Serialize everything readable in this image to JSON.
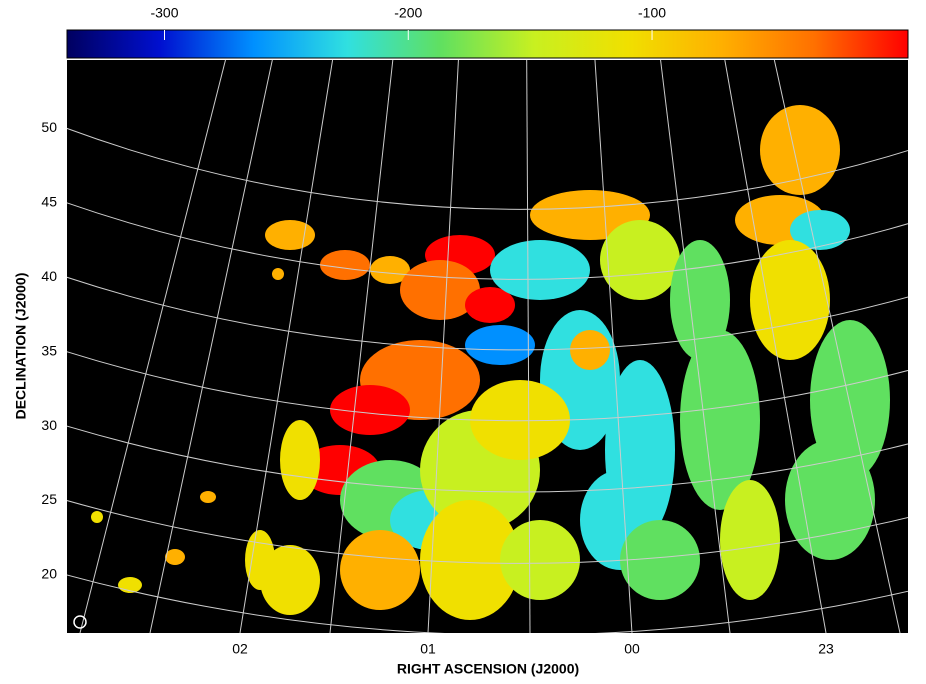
{
  "chart_data": {
    "type": "map",
    "x_label": "RIGHT ASCENSION (J2000)",
    "y_label": "DECLINATION (J2000)",
    "xtick_labels": [
      "02",
      "01",
      "00",
      "23"
    ],
    "ylim": [
      16.1,
      54.6
    ],
    "yticks": [
      20,
      25,
      30,
      35,
      40,
      45,
      50
    ],
    "grid": true,
    "colorbar": {
      "lim": [
        -340,
        5
      ],
      "ticks": [
        -300,
        -200,
        -100
      ],
      "colormap": [
        "#000060",
        "#0010d0",
        "#0090ff",
        "#30e0e0",
        "#60e060",
        "#c8f020",
        "#f0e000",
        "#ffb000",
        "#ff7000",
        "#ff0000"
      ]
    }
  }
}
